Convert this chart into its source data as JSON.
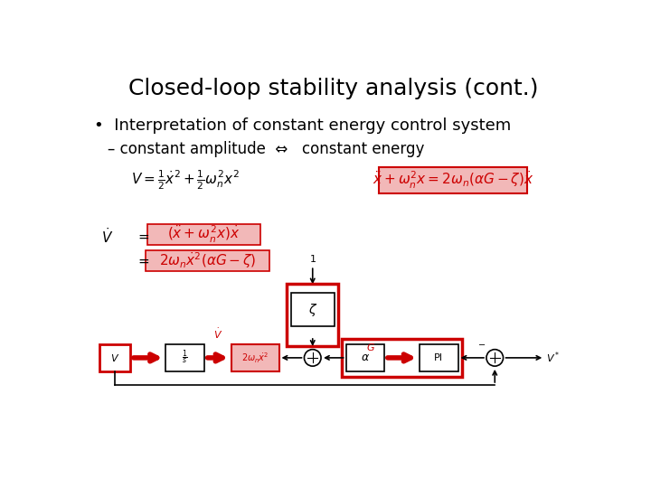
{
  "title": "Closed-loop stability analysis (cont.)",
  "title_fontsize": 18,
  "bullet_fontsize": 13,
  "sub_bullet_fontsize": 12,
  "eq_fontsize": 11,
  "bg_color": "#ffffff",
  "text_color": "#000000",
  "red_color": "#cc0000",
  "pink_color": "#f2b8b8",
  "bullet": "Interpretation of constant energy control system",
  "sub_bullet": "– constant amplitude  ⇔   constant energy"
}
